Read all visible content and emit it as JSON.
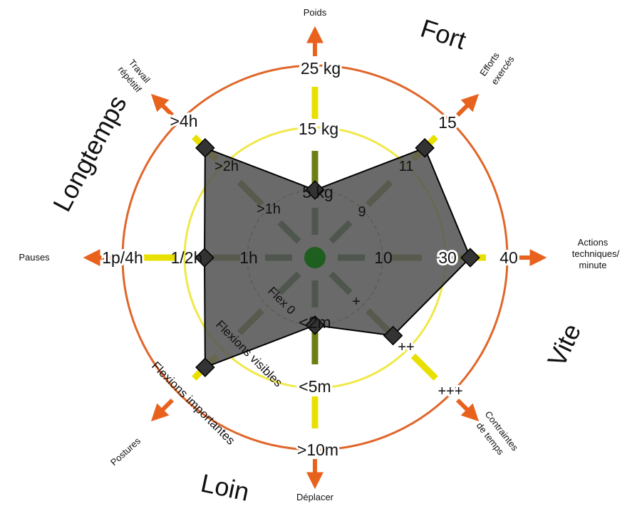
{
  "corners": {
    "top_right": "Fort",
    "top_left": "Longtemps",
    "bottom_right": "Vite",
    "bottom_left": "Loin"
  },
  "axes": {
    "poids": "Poids",
    "efforts_line1": "Efforts",
    "efforts_line2": "exercés",
    "actions_line1": "Actions",
    "actions_line2": "techniques/",
    "actions_line3": "minute",
    "contraintes_line1": "Contraintes",
    "contraintes_line2": "de temps",
    "deplacer": "Déplacer",
    "postures": "Postures",
    "pauses": "Pauses",
    "travail_line1": "Travail",
    "travail_line2": "répétitif"
  },
  "ticks": {
    "poids": [
      "5 kg",
      "15 kg",
      "25 kg"
    ],
    "efforts": [
      "9",
      "11",
      "15"
    ],
    "actions": [
      "10",
      "30",
      "40"
    ],
    "contraintes": [
      "+",
      "++",
      "+++"
    ],
    "deplacer": [
      "<2m",
      "<5m",
      ">10m"
    ],
    "postures": [
      "Flex 0",
      "Flexions visibles",
      "Flexions importantes"
    ],
    "pauses": [
      "1h",
      "1/2h",
      "1p/4h"
    ],
    "travail": [
      ">1h",
      ">2h",
      ">4h"
    ]
  },
  "colors": {
    "inner": "#1e5e1e",
    "mid": "#6e7d16",
    "outer": "#e8e000",
    "ring_outer": "#e0662a",
    "ring_mid": "#f0e84a",
    "arrow": "#e8621e",
    "polygon": "#555555"
  },
  "profile_levels": [
    1,
    3,
    3,
    2,
    1,
    3,
    2,
    3
  ]
}
